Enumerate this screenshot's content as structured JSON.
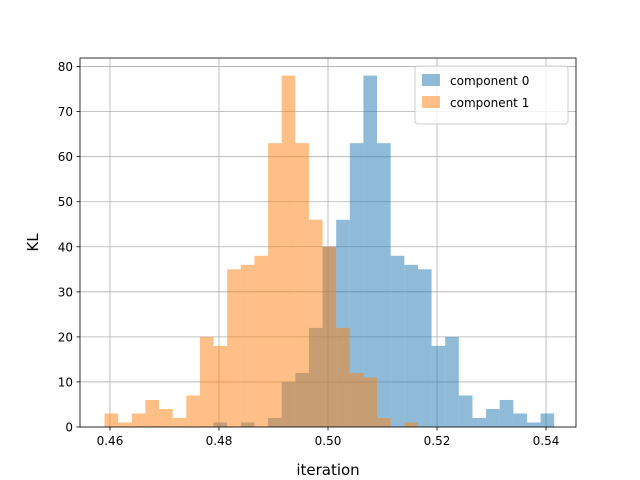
{
  "chart_data": {
    "type": "histogram",
    "title": "",
    "xlabel": "iteration",
    "ylabel": "KL",
    "xlim": [
      0.4545,
      0.5455
    ],
    "ylim": [
      0,
      81.9
    ],
    "xticks": [
      0.46,
      0.48,
      0.5,
      0.52,
      0.54
    ],
    "xtick_labels": [
      "0.46",
      "0.48",
      "0.50",
      "0.52",
      "0.54"
    ],
    "yticks": [
      0,
      10,
      20,
      30,
      40,
      50,
      60,
      70,
      80
    ],
    "ytick_labels": [
      "0",
      "10",
      "20",
      "30",
      "40",
      "50",
      "60",
      "70",
      "80"
    ],
    "grid": true,
    "legend_position": "top-right",
    "series": [
      {
        "name": "component 0",
        "color": "#1f77b4",
        "opacity": 0.5,
        "bin_start": 0.479,
        "bin_width": 0.0025,
        "counts": [
          1,
          0,
          1,
          0,
          2,
          10,
          12,
          22,
          40,
          46,
          63,
          78,
          63,
          38,
          36,
          35,
          18,
          20,
          7,
          2,
          4,
          6,
          3,
          1,
          3
        ]
      },
      {
        "name": "component 1",
        "color": "#ff7f0e",
        "opacity": 0.5,
        "bin_start": 0.459,
        "bin_width": 0.0025,
        "counts": [
          3,
          1,
          3,
          6,
          4,
          2,
          7,
          20,
          18,
          35,
          36,
          38,
          63,
          78,
          63,
          46,
          40,
          22,
          12,
          11,
          2,
          0,
          1
        ]
      }
    ]
  }
}
